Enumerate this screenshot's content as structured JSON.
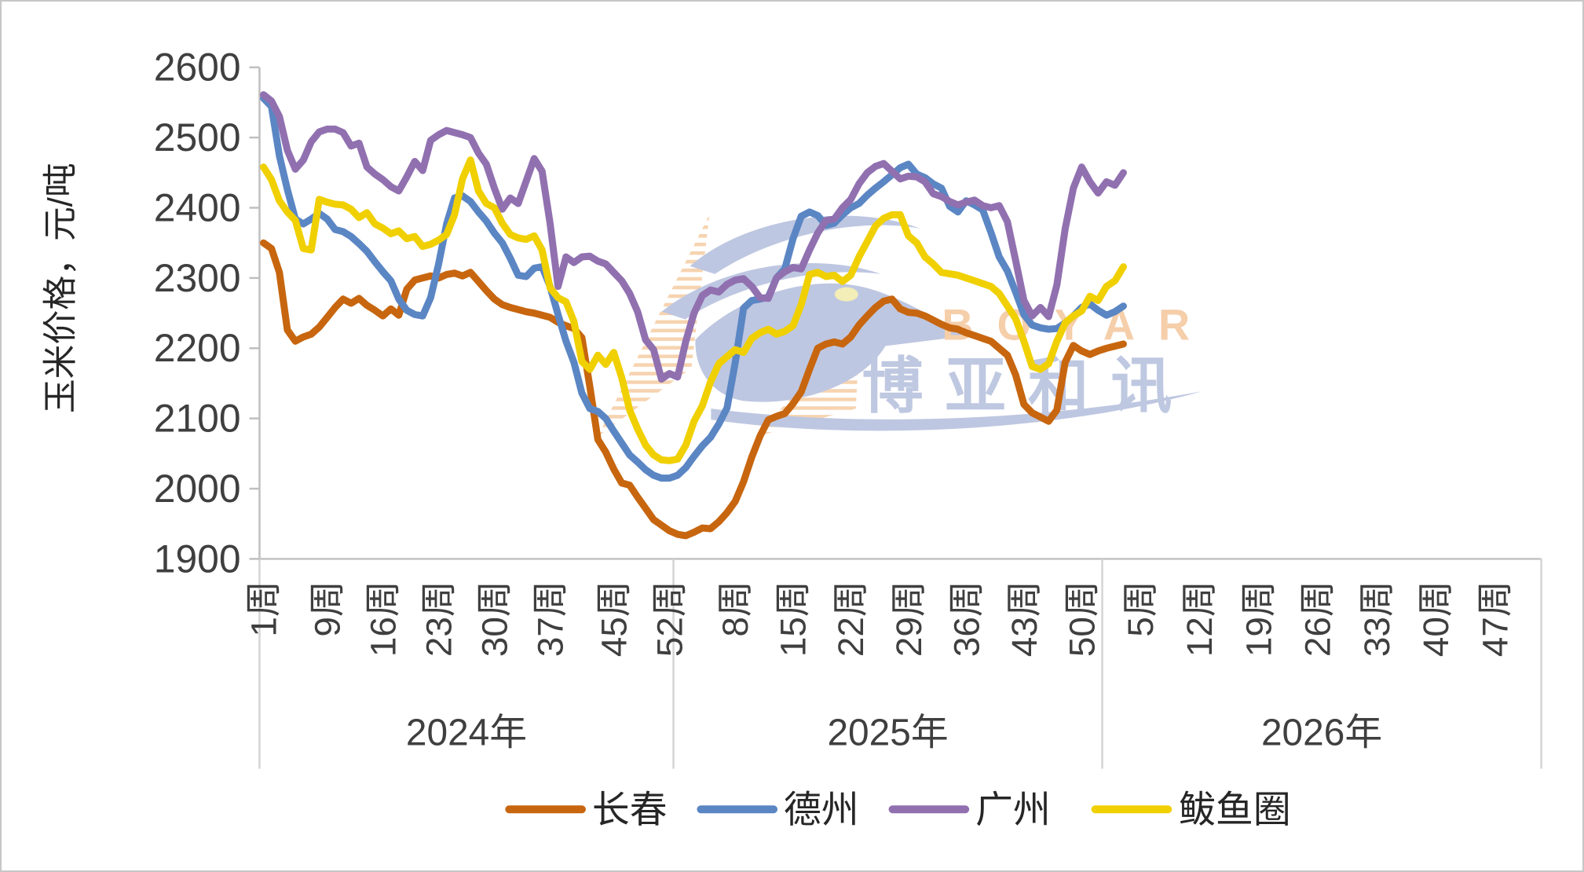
{
  "watermark": {
    "brand_latin": "BOYAR",
    "brand_cjk": "博亚和讯",
    "latin_color": "#F5C9A1",
    "cjk_color": "#B9C3DE",
    "bird_color": "#B8C2DE",
    "stripe_color": "#F6CFA8",
    "eye_color": "#F2EDB0"
  },
  "chart_data": {
    "type": "line",
    "title": "",
    "ylabel": "玉米价格，元/吨",
    "ylim": [
      1900,
      2600
    ],
    "ytick_step": 100,
    "grid": false,
    "legend_position": "bottom",
    "axis_color": "#BFBFBF",
    "separator_color": "#D4D4D4",
    "text_color": "#3F3F3F",
    "week_label_suffix": "周",
    "x_structure": {
      "years": [
        {
          "label": "2024年",
          "weeks": 52,
          "tick_weeks": [
            1,
            9,
            16,
            23,
            30,
            37,
            45,
            52
          ]
        },
        {
          "label": "2025年",
          "weeks": 52,
          "tick_weeks": [
            8,
            15,
            22,
            29,
            36,
            43,
            50
          ]
        },
        {
          "label": "2026年",
          "weeks": 52,
          "tick_weeks": [
            5,
            12,
            19,
            26,
            33,
            40,
            47
          ]
        }
      ]
    },
    "series": [
      {
        "name": "长春",
        "color": "#C7660F",
        "values": [
          2350,
          2342,
          2308,
          2226,
          2210,
          2216,
          2220,
          2230,
          2244,
          2258,
          2270,
          2264,
          2271,
          2261,
          2254,
          2246,
          2256,
          2247,
          2284,
          2297,
          2300,
          2303,
          2300,
          2305,
          2307,
          2303,
          2308,
          2295,
          2282,
          2270,
          2262,
          2258,
          2255,
          2252,
          2250,
          2247,
          2244,
          2237,
          2232,
          2228,
          2215,
          2145,
          2070,
          2052,
          2028,
          2008,
          2005,
          1988,
          1972,
          1956,
          1948,
          1940,
          1935,
          1933,
          1938,
          1944,
          1943,
          1953,
          1966,
          1982,
          2010,
          2045,
          2075,
          2098,
          2103,
          2107,
          2121,
          2138,
          2170,
          2200,
          2206,
          2209,
          2206,
          2216,
          2233,
          2246,
          2258,
          2267,
          2270,
          2256,
          2251,
          2250,
          2246,
          2240,
          2234,
          2229,
          2227,
          2222,
          2218,
          2214,
          2210,
          2200,
          2190,
          2162,
          2120,
          2108,
          2102,
          2096,
          2112,
          2180,
          2204,
          2196,
          2191,
          2196,
          2200,
          2203,
          2206
        ]
      },
      {
        "name": "德州",
        "color": "#5B86C4",
        "values": [
          2556,
          2544,
          2474,
          2426,
          2384,
          2377,
          2384,
          2392,
          2384,
          2369,
          2366,
          2359,
          2349,
          2338,
          2323,
          2309,
          2296,
          2270,
          2254,
          2248,
          2246,
          2272,
          2320,
          2377,
          2414,
          2417,
          2409,
          2394,
          2381,
          2364,
          2350,
          2328,
          2304,
          2302,
          2314,
          2316,
          2288,
          2248,
          2210,
          2180,
          2136,
          2114,
          2110,
          2100,
          2082,
          2065,
          2048,
          2038,
          2027,
          2019,
          2015,
          2015,
          2019,
          2030,
          2046,
          2061,
          2073,
          2092,
          2115,
          2180,
          2257,
          2268,
          2270,
          2273,
          2300,
          2313,
          2356,
          2388,
          2394,
          2389,
          2375,
          2378,
          2390,
          2400,
          2406,
          2418,
          2428,
          2437,
          2447,
          2457,
          2462,
          2448,
          2443,
          2434,
          2428,
          2402,
          2394,
          2410,
          2404,
          2397,
          2365,
          2330,
          2310,
          2280,
          2248,
          2233,
          2229,
          2227,
          2228,
          2236,
          2246,
          2258,
          2263,
          2254,
          2247,
          2252,
          2260
        ]
      },
      {
        "name": "广州",
        "color": "#9170B0",
        "values": [
          2561,
          2552,
          2530,
          2482,
          2455,
          2468,
          2494,
          2508,
          2512,
          2512,
          2507,
          2488,
          2492,
          2458,
          2448,
          2440,
          2430,
          2424,
          2444,
          2466,
          2453,
          2496,
          2504,
          2510,
          2507,
          2504,
          2500,
          2478,
          2462,
          2428,
          2398,
          2414,
          2406,
          2438,
          2470,
          2452,
          2378,
          2288,
          2330,
          2322,
          2330,
          2331,
          2324,
          2320,
          2308,
          2296,
          2278,
          2252,
          2212,
          2198,
          2156,
          2164,
          2159,
          2210,
          2250,
          2275,
          2283,
          2280,
          2291,
          2297,
          2299,
          2288,
          2272,
          2271,
          2300,
          2309,
          2315,
          2313,
          2340,
          2364,
          2382,
          2384,
          2400,
          2412,
          2434,
          2450,
          2459,
          2463,
          2452,
          2441,
          2445,
          2444,
          2437,
          2420,
          2416,
          2409,
          2404,
          2408,
          2411,
          2403,
          2400,
          2403,
          2380,
          2325,
          2268,
          2246,
          2258,
          2245,
          2290,
          2370,
          2428,
          2458,
          2437,
          2421,
          2437,
          2432,
          2450
        ]
      },
      {
        "name": "鲅鱼圈",
        "color": "#F0D000",
        "values": [
          2458,
          2440,
          2410,
          2394,
          2382,
          2342,
          2340,
          2412,
          2408,
          2405,
          2404,
          2398,
          2386,
          2393,
          2377,
          2371,
          2363,
          2367,
          2356,
          2359,
          2345,
          2348,
          2354,
          2362,
          2390,
          2441,
          2468,
          2424,
          2406,
          2400,
          2378,
          2362,
          2357,
          2355,
          2360,
          2340,
          2286,
          2272,
          2266,
          2238,
          2181,
          2170,
          2190,
          2177,
          2194,
          2158,
          2112,
          2085,
          2062,
          2048,
          2041,
          2040,
          2042,
          2062,
          2096,
          2118,
          2152,
          2178,
          2188,
          2198,
          2194,
          2214,
          2222,
          2227,
          2220,
          2224,
          2232,
          2262,
          2305,
          2308,
          2302,
          2304,
          2295,
          2304,
          2330,
          2352,
          2374,
          2385,
          2390,
          2390,
          2360,
          2350,
          2330,
          2320,
          2308,
          2306,
          2304,
          2300,
          2296,
          2292,
          2288,
          2278,
          2260,
          2242,
          2210,
          2174,
          2170,
          2178,
          2210,
          2236,
          2246,
          2253,
          2274,
          2268,
          2288,
          2296,
          2316
        ]
      }
    ]
  }
}
